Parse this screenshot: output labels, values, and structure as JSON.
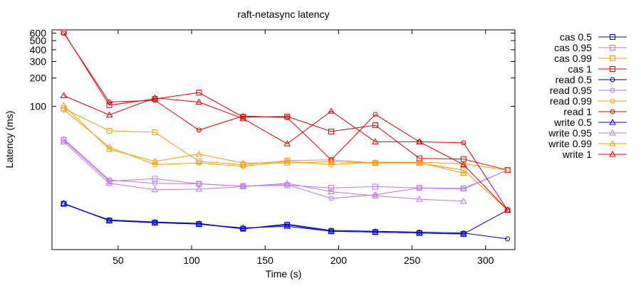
{
  "chart_data": {
    "type": "line",
    "title": "raft-netasync latency",
    "xlabel": "Time (s)",
    "ylabel": "Latency (ms)",
    "yscale": "log",
    "xlim": [
      5,
      320
    ],
    "ylim": [
      3,
      650
    ],
    "xticks": [
      50,
      100,
      150,
      200,
      250,
      300
    ],
    "yticks": [
      100,
      200,
      300,
      400,
      500,
      600
    ],
    "grid": false,
    "legend_position": "right",
    "series": [
      {
        "name": "cas 0.5",
        "color": "#0000dd",
        "marker": "square",
        "x": [
          13,
          44,
          75,
          105,
          135,
          165,
          195,
          225,
          255,
          285,
          315
        ],
        "y": [
          9.2,
          6.1,
          5.8,
          5.6,
          5.0,
          5.5,
          4.7,
          4.6,
          4.5,
          4.4,
          7.9
        ]
      },
      {
        "name": "cas 0.95",
        "color": "#bb77ee",
        "marker": "square",
        "x": [
          13,
          44,
          75,
          105,
          135,
          165,
          195,
          225,
          255,
          285,
          315
        ],
        "y": [
          44,
          16,
          17,
          15,
          14.2,
          14.5,
          13.6,
          14,
          13.6,
          13.4,
          21
        ]
      },
      {
        "name": "cas 0.99",
        "color": "#ff9900",
        "marker": "square",
        "x": [
          13,
          44,
          75,
          105,
          135,
          165,
          195,
          225,
          255,
          285,
          315
        ],
        "y": [
          95,
          55,
          53,
          26,
          24,
          26.5,
          27,
          25,
          25,
          21,
          7.9
        ]
      },
      {
        "name": "cas 1",
        "color": "#dd0000",
        "marker": "square",
        "x": [
          13,
          44,
          75,
          105,
          135,
          165,
          195,
          225,
          255,
          285,
          315
        ],
        "y": [
          612,
          103,
          120,
          140,
          77,
          78,
          54,
          63,
          28,
          27.5,
          21
        ]
      },
      {
        "name": "read 0.5",
        "color": "#0000aa",
        "marker": "circle",
        "x": [
          13,
          44,
          75,
          105,
          135,
          165,
          195,
          225,
          255,
          285,
          315
        ],
        "y": [
          9.2,
          6.2,
          5.9,
          5.7,
          5.0,
          5.6,
          4.8,
          4.7,
          4.6,
          4.5,
          3.9
        ]
      },
      {
        "name": "read 0.95",
        "color": "#bb77ee",
        "marker": "circle",
        "x": [
          13,
          44,
          75,
          105,
          135,
          165,
          195,
          225,
          255,
          285,
          315
        ],
        "y": [
          45,
          16.5,
          15.2,
          15,
          14.2,
          14.7,
          10.5,
          11.5,
          13.6,
          13.2,
          21
        ]
      },
      {
        "name": "read 0.99",
        "color": "#ff9900",
        "marker": "circle",
        "x": [
          13,
          44,
          75,
          105,
          135,
          165,
          195,
          225,
          255,
          285,
          315
        ],
        "y": [
          92,
          37,
          24,
          25,
          23,
          26,
          24,
          25.5,
          25.5,
          24.5,
          21
        ]
      },
      {
        "name": "read 1",
        "color": "#dd0000",
        "marker": "circle",
        "x": [
          13,
          44,
          75,
          105,
          135,
          165,
          195,
          225,
          255,
          285,
          315
        ],
        "y": [
          600,
          111,
          116,
          56,
          79,
          76,
          27,
          82,
          42,
          41,
          7.9
        ]
      },
      {
        "name": "write 0.5",
        "color": "#0000dd",
        "marker": "triangle",
        "x": [
          13,
          44,
          75,
          105,
          135,
          165,
          195,
          225,
          255,
          285
        ],
        "y": [
          9.3,
          6.1,
          5.8,
          5.6,
          5.1,
          5.3,
          4.7,
          4.6,
          4.5,
          4.4
        ]
      },
      {
        "name": "write 0.95",
        "color": "#bb77ee",
        "marker": "triangle",
        "x": [
          13,
          44,
          75,
          105,
          135,
          165,
          195,
          225,
          255,
          285
        ],
        "y": [
          42,
          15.2,
          13,
          13.2,
          14,
          15.2,
          12.4,
          11.2,
          10.3,
          9.8
        ]
      },
      {
        "name": "write 0.99",
        "color": "#ff9900",
        "marker": "triangle",
        "x": [
          13,
          44,
          75,
          105,
          135,
          165,
          195,
          225,
          255,
          285
        ],
        "y": [
          102,
          35,
          26,
          31,
          25,
          25,
          25.8,
          25,
          25.3,
          19.5
        ]
      },
      {
        "name": "write 1",
        "color": "#dd0000",
        "marker": "triangle",
        "x": [
          13,
          44,
          75,
          105,
          135,
          165,
          195,
          225,
          255,
          285,
          315
        ],
        "y": [
          130,
          81,
          123,
          111,
          74,
          40,
          89,
          42,
          42,
          24,
          7.9
        ]
      }
    ]
  }
}
